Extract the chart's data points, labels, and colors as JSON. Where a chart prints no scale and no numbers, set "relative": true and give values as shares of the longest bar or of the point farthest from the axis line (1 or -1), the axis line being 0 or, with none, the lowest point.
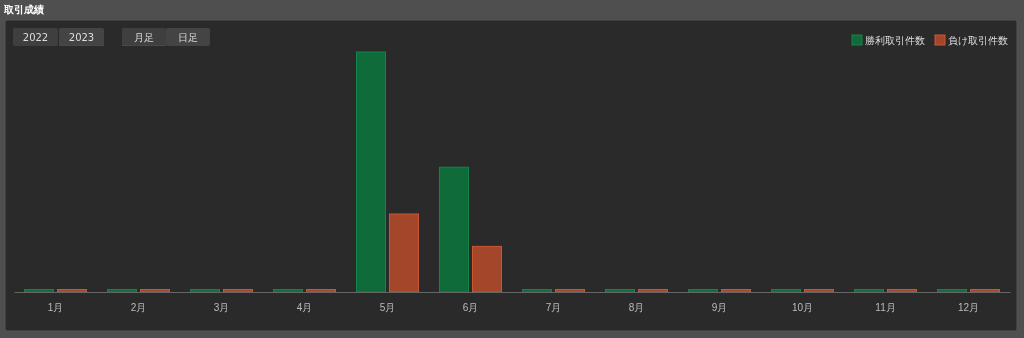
{
  "chart_data": {
    "type": "bar",
    "title": "取引成績",
    "relative": true,
    "legend": "top right",
    "categories": [
      "1月",
      "2月",
      "3月",
      "4月",
      "5月",
      "6月",
      "7月",
      "8月",
      "9月",
      "10月",
      "11月",
      "12月"
    ],
    "series": [
      {
        "name": "勝利取引件数",
        "color": "#0f6b3a",
        "values": [
          0,
          0,
          0,
          0,
          1,
          0.52,
          0,
          0,
          0,
          0,
          0,
          0
        ]
      },
      {
        "name": "負け取引件数",
        "color": "#a3462a",
        "values": [
          0,
          0,
          0,
          0,
          0.325,
          0.19,
          0,
          0,
          0,
          0,
          0,
          0
        ]
      }
    ],
    "annotations": [
      "2022",
      "2023",
      "月足",
      "日足"
    ]
  }
}
